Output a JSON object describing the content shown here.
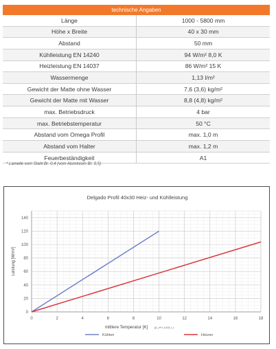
{
  "table": {
    "header": "technische Angaben",
    "rows": [
      {
        "label": "Länge",
        "value": "1000 - 5800 mm"
      },
      {
        "label": "Höhe x Breite",
        "value": "40 x 30 mm"
      },
      {
        "label": "Abstand",
        "value": "50 mm"
      },
      {
        "label": "Kühlleistung EN 14240",
        "value": "94 W/m² 8,0 K"
      },
      {
        "label": "Heizleistung EN 14037",
        "value": "86 W/m² 15 K"
      },
      {
        "label": "Wassermenge",
        "value": "1,13 l/m²"
      },
      {
        "label": "Gewicht der Matte ohne Wasser",
        "value": "7,6 (3,6) kg/m²"
      },
      {
        "label": "Gewicht der Matte mit Wasser",
        "value": "8,8 (4,8) kg/m²"
      },
      {
        "label": "max. Betriebsdruck",
        "value": "4 bar"
      },
      {
        "label": "max. Betriebstemperatur",
        "value": "50 °C"
      },
      {
        "label": "Abstand vom Omega Profil",
        "value": "max. 1,0 m"
      },
      {
        "label": "Abstand vom Halter",
        "value": "max. 1,2 m"
      },
      {
        "label": "Feuerbeständigkeit",
        "value": "A1"
      }
    ]
  },
  "footnote": "* Lamelle vom Stahl Br. 0,4 (vom Aluminium Br. 0,5)",
  "colors": {
    "header": "#f2792b",
    "kuehlen": "#7080c8",
    "heizen": "#d8363c"
  },
  "chart_data": {
    "type": "line",
    "title": "Delgado Profil 40x30 Heiz- und Kühlleistung",
    "xlabel": "mittlere Temperatur [K]",
    "xlabel_formula": "((t_vl+t_rl)/2)-t_r",
    "ylabel": "Leistung [W/m²]",
    "xlim": [
      0,
      18
    ],
    "ylim": [
      0,
      150
    ],
    "x_ticks": [
      0,
      2,
      4,
      6,
      8,
      10,
      12,
      14,
      16,
      18
    ],
    "y_ticks": [
      0,
      20,
      40,
      60,
      80,
      100,
      120,
      140
    ],
    "grid": true,
    "legend": "bottom",
    "series": [
      {
        "name": "Kühlen",
        "x": [
          0,
          10
        ],
        "y": [
          0,
          120
        ]
      },
      {
        "name": "Heizen",
        "x": [
          0,
          18
        ],
        "y": [
          0,
          104
        ]
      }
    ]
  }
}
